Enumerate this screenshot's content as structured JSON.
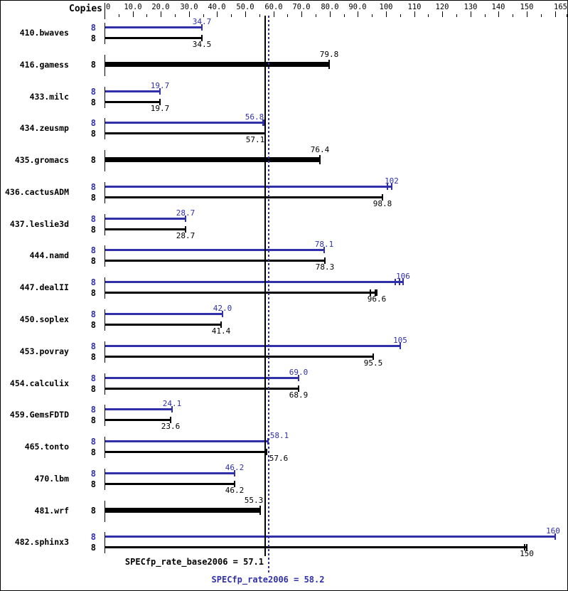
{
  "header": {
    "copies_label": "Copies"
  },
  "axis": {
    "min": 0,
    "max": 165,
    "major_tick_step": 10,
    "minor_tick_step": 5,
    "tick_labels": [
      {
        "value": 0,
        "text": "0"
      },
      {
        "value": 10,
        "text": "10.0"
      },
      {
        "value": 20,
        "text": "20.0"
      },
      {
        "value": 30,
        "text": "30.0"
      },
      {
        "value": 40,
        "text": "40.0"
      },
      {
        "value": 50,
        "text": "50.0"
      },
      {
        "value": 60,
        "text": "60.0"
      },
      {
        "value": 70,
        "text": "70.0"
      },
      {
        "value": 80,
        "text": "80.0"
      },
      {
        "value": 90,
        "text": "90.0"
      },
      {
        "value": 100,
        "text": "100"
      },
      {
        "value": 110,
        "text": "110"
      },
      {
        "value": 120,
        "text": "120"
      },
      {
        "value": 130,
        "text": "130"
      },
      {
        "value": 140,
        "text": "140"
      },
      {
        "value": 150,
        "text": "150"
      },
      {
        "value": 165,
        "text": "165"
      }
    ]
  },
  "chart_data": {
    "type": "bar",
    "orientation": "horizontal",
    "copies_column_header": "Copies",
    "colors": {
      "peak": "#3030aa",
      "base": "#000000"
    },
    "benchmarks": [
      {
        "name": "410.bwaves",
        "copies": 8,
        "peak": {
          "value": 34.7,
          "label": "34.7"
        },
        "base": {
          "value": 34.5,
          "label": "34.5"
        }
      },
      {
        "name": "416.gamess",
        "copies": 8,
        "single": {
          "value": 79.8,
          "label": "79.8"
        }
      },
      {
        "name": "433.milc",
        "copies": 8,
        "peak": {
          "value": 19.7,
          "label": "19.7"
        },
        "base": {
          "value": 19.7,
          "label": "19.7"
        }
      },
      {
        "name": "434.zeusmp",
        "copies": 8,
        "peak": {
          "value": 56.8,
          "label": "56.8",
          "label_dx": -14,
          "marks": [
            56.2,
            56.8
          ]
        },
        "base": {
          "value": 57.1,
          "label": "57.1",
          "label_dx": -14
        }
      },
      {
        "name": "435.gromacs",
        "copies": 8,
        "single": {
          "value": 76.4,
          "label": "76.4"
        }
      },
      {
        "name": "436.cactusADM",
        "copies": 8,
        "peak": {
          "value": 102,
          "label": "102",
          "marks": [
            100.6,
            102
          ]
        },
        "base": {
          "value": 98.8,
          "label": "98.8"
        }
      },
      {
        "name": "437.leslie3d",
        "copies": 8,
        "peak": {
          "value": 28.7,
          "label": "28.7"
        },
        "base": {
          "value": 28.7,
          "label": "28.7"
        }
      },
      {
        "name": "444.namd",
        "copies": 8,
        "peak": {
          "value": 78.1,
          "label": "78.1"
        },
        "base": {
          "value": 78.3,
          "label": "78.3"
        }
      },
      {
        "name": "447.dealII",
        "copies": 8,
        "peak": {
          "value": 106,
          "label": "106",
          "marks": [
            103.4,
            104.7,
            106
          ]
        },
        "base": {
          "value": 96.6,
          "label": "96.6",
          "marks": [
            94.5,
            96.1,
            96.6
          ]
        }
      },
      {
        "name": "450.soplex",
        "copies": 8,
        "peak": {
          "value": 42.0,
          "label": "42.0"
        },
        "base": {
          "value": 41.4,
          "label": "41.4"
        }
      },
      {
        "name": "453.povray",
        "copies": 8,
        "peak": {
          "value": 105,
          "label": "105"
        },
        "base": {
          "value": 95.5,
          "label": "95.5"
        }
      },
      {
        "name": "454.calculix",
        "copies": 8,
        "peak": {
          "value": 69.0,
          "label": "69.0"
        },
        "base": {
          "value": 68.9,
          "label": "68.9"
        }
      },
      {
        "name": "459.GemsFDTD",
        "copies": 8,
        "peak": {
          "value": 24.1,
          "label": "24.1"
        },
        "base": {
          "value": 23.6,
          "label": "23.6"
        }
      },
      {
        "name": "465.tonto",
        "copies": 8,
        "peak": {
          "value": 58.1,
          "label": "58.1",
          "label_dx": 16
        },
        "base": {
          "value": 57.6,
          "label": "57.6",
          "label_dx": 17
        }
      },
      {
        "name": "470.lbm",
        "copies": 8,
        "peak": {
          "value": 46.2,
          "label": "46.2"
        },
        "base": {
          "value": 46.2,
          "label": "46.2"
        }
      },
      {
        "name": "481.wrf",
        "copies": 8,
        "single": {
          "value": 55.3,
          "label": "55.3",
          "label_dx": -9
        }
      },
      {
        "name": "482.sphinx3",
        "copies": 8,
        "peak": {
          "value": 160,
          "label": "160"
        },
        "base": {
          "value": 150,
          "label": "150",
          "marks": [
            149.2,
            150
          ]
        }
      }
    ],
    "reference_lines": [
      {
        "name": "base",
        "label": "SPECfp_rate_base2006 = 57.1",
        "value": 57.1,
        "line_style": "solid",
        "color": "#000000"
      },
      {
        "name": "peak",
        "label": "SPECfp_rate2006 = 58.2",
        "value": 58.2,
        "line_style": "dotted",
        "color": "#3030aa"
      }
    ]
  }
}
